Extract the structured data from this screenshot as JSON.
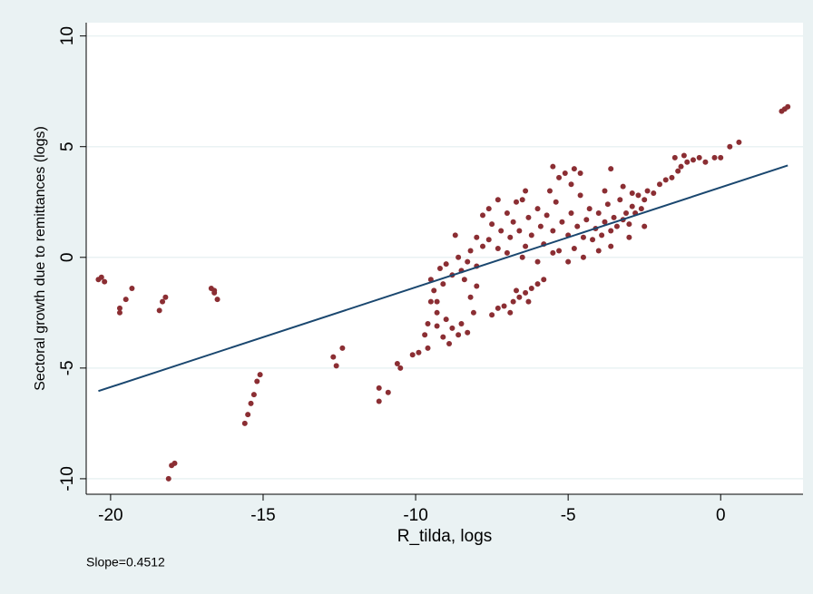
{
  "chart_data": {
    "type": "scatter",
    "xlabel": "R_tilda, logs",
    "ylabel": "Sectoral growth due to remittances (logs)",
    "note": "Slope=0.4512",
    "xlim": [
      -20.8,
      2.7
    ],
    "ylim": [
      -10.7,
      10.6
    ],
    "xticks": [
      -20,
      -15,
      -10,
      -5,
      0
    ],
    "yticks": [
      -10,
      -5,
      0,
      5,
      10
    ],
    "grid": true,
    "series": [
      {
        "type": "scatter",
        "color": "#8b2e33",
        "x": [
          -20.4,
          -20.3,
          -20.2,
          -19.7,
          -19.7,
          -19.5,
          -19.3,
          -18.4,
          -18.3,
          -18.2,
          -18.0,
          -17.9,
          -18.1,
          -16.7,
          -16.6,
          -16.5,
          -16.6,
          -15.6,
          -15.5,
          -15.4,
          -15.3,
          -15.2,
          -15.1,
          -12.7,
          -12.6,
          -12.4,
          -11.2,
          -11.2,
          -10.9,
          -10.6,
          -10.5,
          -10.1,
          -9.9,
          -9.6,
          -9.2,
          -9.0,
          -8.8,
          -8.6,
          -8.5,
          -8.4,
          -8.3,
          -8.2,
          -8.0,
          -7.8,
          -7.6,
          -7.5,
          -7.3,
          -7.2,
          -7.0,
          -6.9,
          -6.8,
          -6.6,
          -6.5,
          -6.4,
          -6.3,
          -6.2,
          -6.0,
          -5.9,
          -5.8,
          -5.7,
          -5.6,
          -5.5,
          -5.4,
          -5.3,
          -5.2,
          -5.1,
          -5.0,
          -4.9,
          -4.8,
          -4.7,
          -4.6,
          -4.5,
          -4.4,
          -4.3,
          -4.2,
          -4.1,
          -4.0,
          -3.9,
          -3.8,
          -3.7,
          -3.6,
          -3.5,
          -3.4,
          -3.3,
          -3.2,
          -3.1,
          -3.0,
          -2.9,
          -2.8,
          -2.7,
          -2.6,
          -2.5,
          -2.4,
          -2.2,
          -2.0,
          -1.8,
          -1.6,
          -1.4,
          -1.3,
          -1.1,
          -0.9,
          -0.7,
          -0.5,
          -0.2,
          0.0,
          0.3,
          0.6,
          2.0,
          2.1,
          2.2,
          -5.5,
          -5.3,
          -4.8,
          -4.9,
          -4.6,
          -6.4,
          -6.7,
          -7.3,
          -3.6,
          -3.8,
          -3.2,
          -2.9,
          -1.5,
          -1.2,
          -7.0,
          -6.5,
          -6.0,
          -5.5,
          -5.0,
          -4.5,
          -4.0,
          -3.6,
          -3.0,
          -2.5,
          -8.0,
          -7.8,
          -7.6,
          -8.7,
          -7.5,
          -7.3,
          -7.1,
          -6.9,
          -6.8,
          -6.6,
          -6.4,
          -6.2,
          -6.0,
          -5.8,
          -6.7,
          -6.3,
          -9.5,
          -9.4,
          -9.3,
          -9.3,
          -9.1,
          -9.0,
          -8.8,
          -8.6,
          -8.5,
          -8.3,
          -8.1,
          -8.2,
          -8.0,
          -9.3,
          -9.1,
          -8.9,
          -9.6,
          -9.5,
          -9.7
        ],
        "values": [
          -1.0,
          -0.9,
          -1.1,
          -2.5,
          -2.3,
          -1.9,
          -1.4,
          -2.4,
          -2.0,
          -1.8,
          -9.4,
          -9.3,
          -10.0,
          -1.4,
          -1.6,
          -1.9,
          -1.5,
          -7.5,
          -7.1,
          -6.6,
          -6.2,
          -5.6,
          -5.3,
          -4.5,
          -4.9,
          -4.1,
          -5.9,
          -6.5,
          -6.1,
          -4.8,
          -5.0,
          -4.4,
          -4.3,
          -4.1,
          -0.5,
          -0.3,
          -0.8,
          0.0,
          -0.6,
          -1.0,
          -0.2,
          0.3,
          -0.4,
          0.5,
          0.8,
          1.5,
          0.4,
          1.2,
          2.0,
          0.9,
          1.6,
          1.2,
          2.6,
          0.5,
          1.8,
          1.0,
          2.2,
          1.4,
          0.6,
          1.9,
          3.0,
          1.2,
          2.5,
          0.3,
          1.6,
          3.8,
          1.0,
          2.0,
          0.4,
          1.4,
          2.8,
          0.9,
          1.7,
          2.2,
          0.8,
          1.3,
          2.0,
          1.0,
          1.6,
          2.4,
          1.2,
          1.8,
          1.4,
          2.6,
          1.7,
          2.0,
          1.5,
          2.3,
          2.0,
          2.8,
          2.2,
          2.6,
          3.0,
          2.9,
          3.3,
          3.5,
          3.6,
          3.9,
          4.1,
          4.3,
          4.4,
          4.5,
          4.3,
          4.5,
          4.5,
          5.0,
          5.2,
          6.6,
          6.7,
          6.8,
          4.1,
          3.6,
          4.0,
          3.3,
          3.8,
          3.0,
          2.5,
          2.6,
          4.0,
          3.0,
          3.2,
          2.9,
          4.5,
          4.6,
          0.2,
          0.0,
          -0.2,
          0.2,
          -0.2,
          0.0,
          0.3,
          0.5,
          0.9,
          1.4,
          0.9,
          1.9,
          2.2,
          1.0,
          -2.6,
          -2.3,
          -2.2,
          -2.5,
          -2.0,
          -1.8,
          -1.6,
          -1.4,
          -1.2,
          -1.0,
          -1.5,
          -2.0,
          -1.0,
          -1.5,
          -2.0,
          -2.5,
          -1.2,
          -2.8,
          -3.2,
          -3.5,
          -3.0,
          -3.4,
          -2.5,
          -1.8,
          -1.3,
          -3.1,
          -3.6,
          -3.9,
          -3.0,
          -2.0,
          -3.5
        ]
      },
      {
        "type": "line",
        "color": "#1a476f",
        "x": [
          -20.4,
          2.2
        ],
        "values": [
          -6.04,
          4.15
        ]
      }
    ]
  }
}
